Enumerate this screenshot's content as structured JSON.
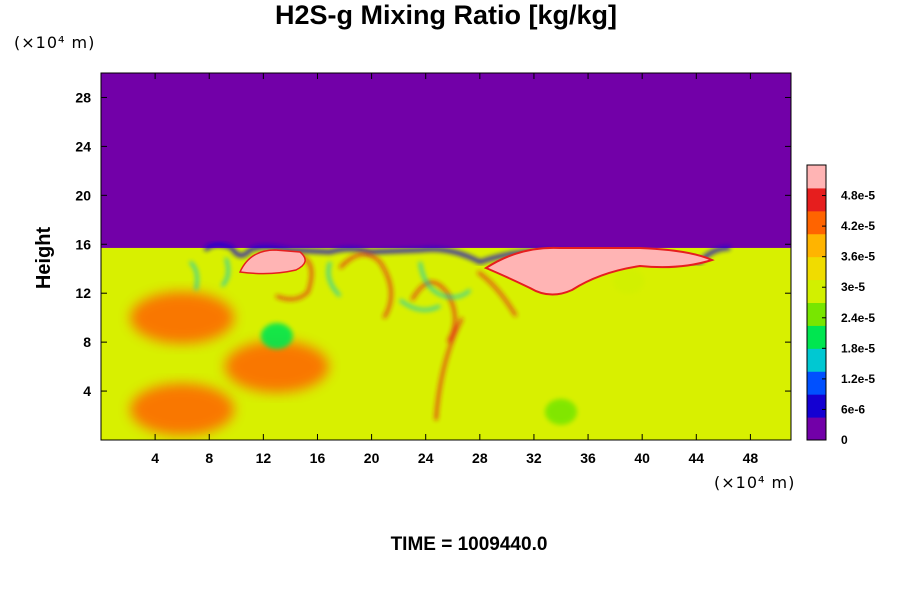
{
  "chart_data": {
    "type": "heatmap",
    "title": "H2S-g Mixing Ratio [kg/kg]",
    "ylabel": "Height",
    "x_unit": "(×10⁴ m)",
    "y_unit": "(×10⁴ m)",
    "footer": "TIME = 1009440.0",
    "xlim": [
      0,
      51
    ],
    "ylim": [
      0,
      30
    ],
    "x_ticks": [
      "4",
      "8",
      "12",
      "16",
      "20",
      "24",
      "28",
      "32",
      "36",
      "40",
      "44",
      "48"
    ],
    "y_ticks": [
      "4",
      "8",
      "12",
      "16",
      "20",
      "24",
      "28"
    ],
    "colorbar": {
      "range": [
        0,
        5.4e-05
      ],
      "tick_labels": [
        "0",
        "6e-6",
        "1.2e-5",
        "1.8e-5",
        "2.4e-5",
        "3e-5",
        "3.6e-5",
        "4.2e-5",
        "4.8e-5"
      ],
      "colors": [
        "#7200a8",
        "#1400d2",
        "#0050ff",
        "#00c8d2",
        "#00e650",
        "#78e600",
        "#d2f000",
        "#f0dc00",
        "#ffb400",
        "#ff6400",
        "#e61e1e",
        "#ffb4b4"
      ]
    },
    "fields": {
      "upper_region": {
        "y_range": [
          15.7,
          30
        ],
        "value": 0,
        "color": "#7200a8"
      },
      "lower_region": {
        "y_range": [
          0,
          15.7
        ],
        "typical_value": 3.6e-05,
        "color": "#d8f000"
      },
      "warm_patches": [
        {
          "x": 6,
          "y": 10,
          "value": 4.2e-05
        },
        {
          "x": 6,
          "y": 2.5,
          "value": 4.2e-05
        },
        {
          "x": 13,
          "y": 6,
          "value": 4.2e-05
        }
      ],
      "cool_patches": [
        {
          "x": 13,
          "y": 8.5,
          "value": 1.8e-05
        },
        {
          "x": 34,
          "y": 2.3,
          "value": 2.4e-05
        },
        {
          "x": 39,
          "y": 13,
          "value": 3e-05
        }
      ],
      "high_plume": {
        "x_range": [
          26,
          45
        ],
        "y_range": [
          12,
          15.7
        ],
        "value": 5e-05
      },
      "minimum_band": {
        "x_range": [
          9,
          46
        ],
        "y": 15.6,
        "value": 6e-06
      }
    }
  }
}
